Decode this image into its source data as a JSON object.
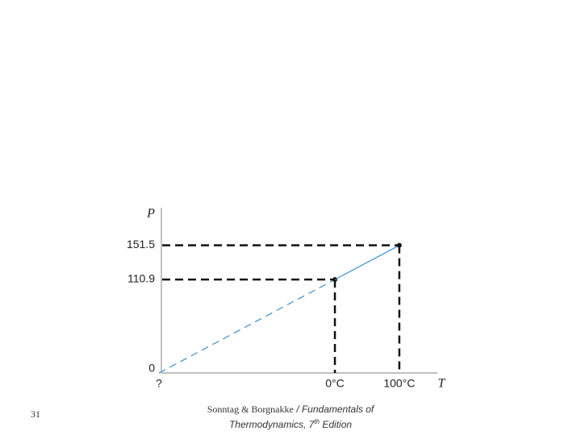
{
  "chart_data": {
    "type": "line",
    "y_label": "P",
    "x_label": "T",
    "x": [
      -273,
      0,
      100
    ],
    "series": [
      {
        "color": "#3a8fd0",
        "values": [
          0,
          110.9,
          151.5
        ]
      }
    ],
    "xlim": [
      -273,
      159
    ],
    "ylim": [
      0,
      196
    ],
    "xticks": [
      {
        "value": -273,
        "label": "?"
      },
      {
        "value": 0,
        "label": "0°C"
      },
      {
        "value": 100,
        "label": "100°C"
      }
    ],
    "yticks": [
      0,
      110.9,
      151.5
    ],
    "grid": false
  },
  "page_number": "31",
  "credit": {
    "authors": "Sonntag & Borgnakke",
    "title": "/ Fundamentals of Thermodynamics, 7",
    "superscript": "th",
    "edition": "Edition"
  }
}
